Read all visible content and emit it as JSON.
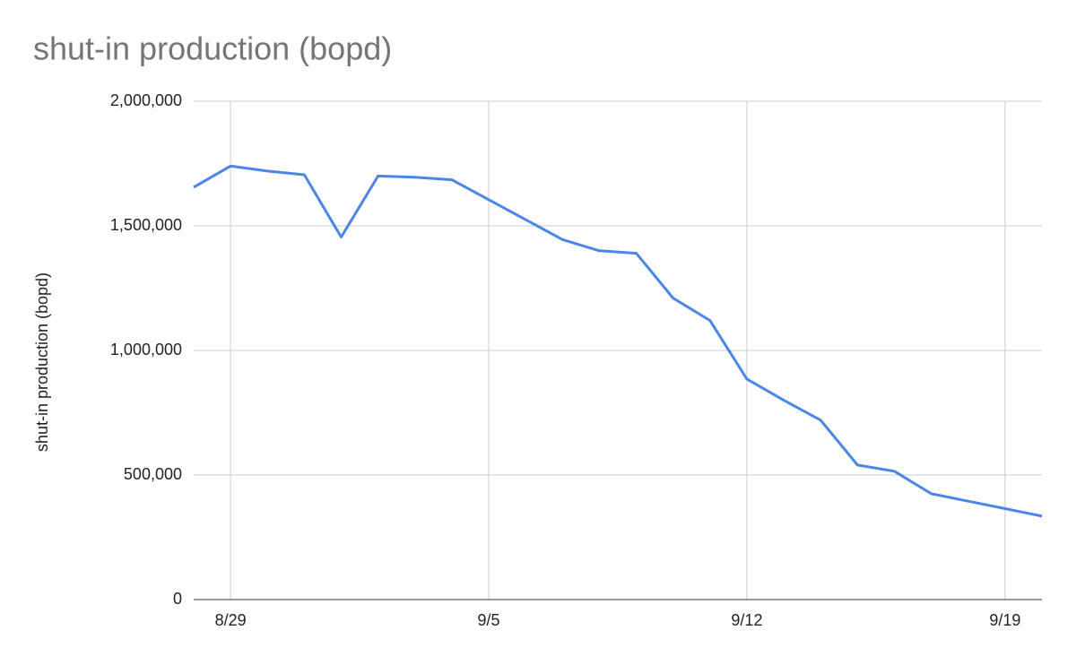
{
  "chart_data": {
    "type": "line",
    "title": "shut-in production (bopd)",
    "y_label": "shut-in production (bopd)",
    "categories": [
      null,
      "8/29",
      null,
      null,
      null,
      null,
      null,
      null,
      "9/5",
      null,
      null,
      null,
      null,
      null,
      null,
      "9/12",
      null,
      null,
      null,
      null,
      null,
      null,
      "9/19",
      null
    ],
    "values": [
      1655000,
      1740000,
      1720000,
      1705000,
      1455000,
      1700000,
      1695000,
      1685000,
      1605000,
      1525000,
      1445000,
      1400000,
      1390000,
      1210000,
      1120000,
      885000,
      800000,
      720000,
      540000,
      515000,
      425000,
      395000,
      365000,
      335000
    ],
    "color": "#4a86e8",
    "ylim": [
      0,
      2000000
    ],
    "yticks": [
      0,
      {
        "value": 500000,
        "label": "500,000"
      },
      {
        "value": 1000000,
        "label": "1,000,000"
      },
      {
        "value": 1500000,
        "label": "1,500,000"
      },
      {
        "value": 2000000,
        "label": "2,000,000"
      }
    ],
    "grid": true
  }
}
